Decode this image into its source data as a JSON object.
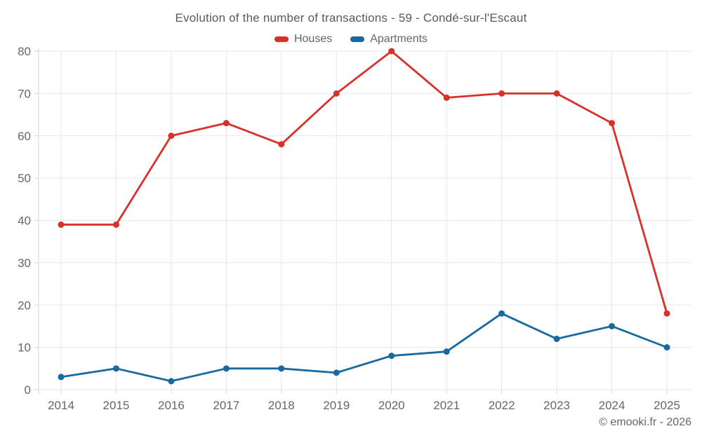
{
  "chart_data": {
    "type": "line",
    "title": "Evolution of the number of transactions - 59 - Condé-sur-l'Escaut",
    "x_categories": [
      "2014",
      "2015",
      "2016",
      "2017",
      "2018",
      "2019",
      "2020",
      "2021",
      "2022",
      "2023",
      "2024",
      "2025"
    ],
    "series": [
      {
        "name": "Houses",
        "color": "#d8312a",
        "values": [
          39,
          39,
          60,
          63,
          58,
          70,
          80,
          69,
          70,
          70,
          63,
          18
        ]
      },
      {
        "name": "Apartments",
        "color": "#17699f",
        "values": [
          3,
          5,
          2,
          5,
          5,
          4,
          8,
          9,
          18,
          12,
          15,
          10
        ]
      }
    ],
    "xlabel": "",
    "ylabel": "",
    "ylim": [
      0,
      80
    ],
    "ytick_step": 10,
    "grid": true,
    "legend_position": "top",
    "colors": {
      "grid": "#e7e7e7",
      "axis": "#d6d6d6",
      "axis_text": "#666666",
      "title_text": "#595959"
    }
  },
  "footer": {
    "copyright": "© emooki.fr - 2026"
  }
}
